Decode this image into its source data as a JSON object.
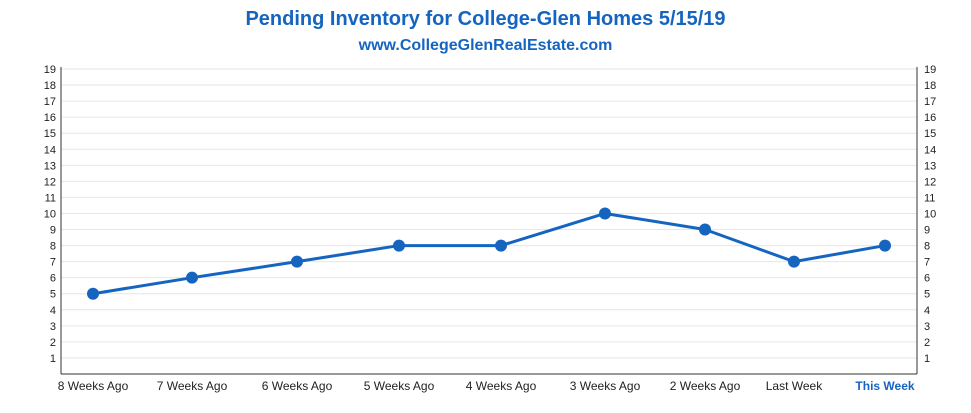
{
  "chart_data": {
    "type": "line",
    "title": "Pending Inventory for College-Glen Homes 5/15/19",
    "subtitle": "www.CollegeGlenRealEstate.com",
    "categories": [
      "8 Weeks Ago",
      "7 Weeks Ago",
      "6 Weeks Ago",
      "5 Weeks Ago",
      "4 Weeks Ago",
      "3 Weeks Ago",
      "2 Weeks Ago",
      "Last Week",
      "This Week"
    ],
    "series": [
      {
        "values": [
          5,
          6,
          7,
          8,
          8,
          10,
          9,
          7,
          8
        ]
      }
    ],
    "highlighted_category": "This Week",
    "ylim": [
      0,
      19
    ],
    "y_ticks": [
      1,
      2,
      3,
      4,
      5,
      6,
      7,
      8,
      9,
      10,
      11,
      12,
      13,
      14,
      15,
      16,
      17,
      18,
      19
    ],
    "y_axis_both_sides": true,
    "grid": true,
    "legend": "none",
    "colors": {
      "line": "#1565c0",
      "title": "#1565c0",
      "grid": "#e6e6e6",
      "axis": "#333333"
    }
  }
}
